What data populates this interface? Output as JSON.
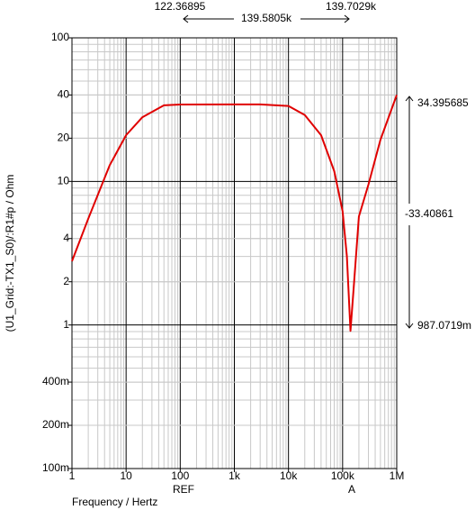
{
  "chart_data": {
    "type": "line",
    "x_label": "Frequency / Hertz",
    "y_label": "(U1_Grid:-TX1_S0)/:R1#p / Ohm",
    "log_x": true,
    "log_y": true,
    "grid": true,
    "minor_grid": true,
    "xlim": [
      1,
      1000000
    ],
    "ylim": [
      0.1,
      100
    ],
    "xticks": [
      1,
      10,
      100,
      {
        "value": 1000,
        "label": "1k"
      },
      {
        "value": 10000,
        "label": "10k"
      },
      {
        "value": 100000,
        "label": "100k"
      },
      {
        "value": 1000000,
        "label": "1M"
      }
    ],
    "yticks": [
      {
        "value": 0.1,
        "label": "100m"
      },
      {
        "value": 0.2,
        "label": "200m"
      },
      {
        "value": 0.4,
        "label": "400m"
      },
      1,
      2,
      4,
      10,
      20,
      40,
      100
    ],
    "series": [
      {
        "color": "#e00000",
        "x": [
          1,
          2,
          5,
          10,
          20,
          50,
          100,
          1000,
          3000,
          10000,
          20000,
          40000,
          70000,
          100000,
          120000,
          139703,
          160000,
          200000,
          300000,
          500000,
          1000000
        ],
        "values": [
          2.78,
          5.5,
          13,
          21,
          28,
          33.9,
          34.3,
          34.4,
          34.4,
          33.5,
          29,
          21,
          11.8,
          6.2,
          3.0,
          0.91,
          1.8,
          5.7,
          9.5,
          19.5,
          40
        ]
      }
    ],
    "cursors": {
      "names": [
        "REF",
        "A"
      ],
      "x_readouts": [
        "122.36895",
        "139.5805k",
        "139.7029k"
      ],
      "y_readouts": [
        "34.395685",
        "-33.40861",
        "987.0719m"
      ]
    }
  }
}
